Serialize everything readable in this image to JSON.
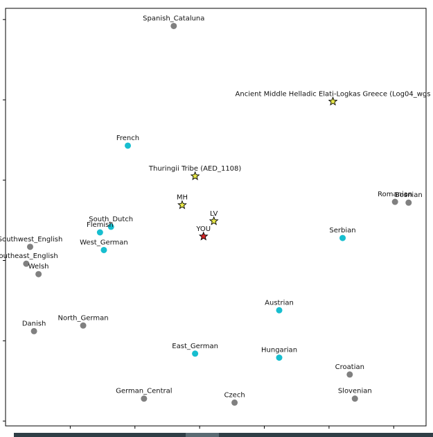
{
  "chart_data": {
    "type": "scatter",
    "title": "",
    "xlabel": "",
    "ylabel": "",
    "grid": false,
    "xlim": [
      0.0,
      6.5
    ],
    "ylim": [
      -0.06,
      5.14
    ],
    "xticks": [
      1,
      2,
      3,
      4,
      5,
      6
    ],
    "yticks": [
      0,
      1,
      2,
      3,
      4,
      5
    ],
    "tick_labels_visible": false,
    "colors": {
      "reference_gray": "#808080",
      "reference_cyan": "#17becf",
      "ancient_star": "#e8e84a",
      "you_star": "#d62728",
      "marker_edge": "#000000"
    },
    "points": [
      {
        "label": "Spanish_Cataluna",
        "x": 2.6,
        "y": 4.92,
        "group": "gray",
        "marker": "circle"
      },
      {
        "label": "Ancient Middle Helladic Elati-Logkas Greece (Log04_wgs",
        "x": 5.06,
        "y": 3.98,
        "group": "ancient",
        "marker": "star"
      },
      {
        "label": "French",
        "x": 1.89,
        "y": 3.43,
        "group": "cyan",
        "marker": "circle"
      },
      {
        "label": "Thuringii Tribe (AED_1108)",
        "x": 2.93,
        "y": 3.05,
        "group": "ancient",
        "marker": "star"
      },
      {
        "label": "Romanian",
        "x": 6.02,
        "y": 2.73,
        "group": "gray",
        "marker": "circle"
      },
      {
        "label": "Bosnian",
        "x": 6.23,
        "y": 2.72,
        "group": "gray",
        "marker": "circle"
      },
      {
        "label": "MH",
        "x": 2.73,
        "y": 2.69,
        "group": "ancient",
        "marker": "star"
      },
      {
        "label": "LV",
        "x": 3.22,
        "y": 2.49,
        "group": "ancient",
        "marker": "star"
      },
      {
        "label": "South_Dutch",
        "x": 1.63,
        "y": 2.42,
        "group": "cyan",
        "marker": "circle"
      },
      {
        "label": "Flemish",
        "x": 1.46,
        "y": 2.35,
        "group": "cyan",
        "marker": "circle"
      },
      {
        "label": "YOU",
        "x": 3.06,
        "y": 2.3,
        "group": "you",
        "marker": "star"
      },
      {
        "label": "Serbian",
        "x": 5.21,
        "y": 2.28,
        "group": "cyan",
        "marker": "circle"
      },
      {
        "label": "Southwest_English",
        "x": 0.38,
        "y": 2.17,
        "group": "gray",
        "marker": "circle"
      },
      {
        "label": "West_German",
        "x": 1.52,
        "y": 2.13,
        "group": "cyan",
        "marker": "circle"
      },
      {
        "label": "Southeast_English",
        "x": 0.32,
        "y": 1.96,
        "group": "gray",
        "marker": "circle"
      },
      {
        "label": "Welsh",
        "x": 0.51,
        "y": 1.83,
        "group": "gray",
        "marker": "circle"
      },
      {
        "label": "Austrian",
        "x": 4.23,
        "y": 1.38,
        "group": "cyan",
        "marker": "circle"
      },
      {
        "label": "North_German",
        "x": 1.2,
        "y": 1.19,
        "group": "gray",
        "marker": "circle"
      },
      {
        "label": "Danish",
        "x": 0.44,
        "y": 1.12,
        "group": "gray",
        "marker": "circle"
      },
      {
        "label": "East_German",
        "x": 2.93,
        "y": 0.84,
        "group": "cyan",
        "marker": "circle"
      },
      {
        "label": "Hungarian",
        "x": 4.23,
        "y": 0.79,
        "group": "cyan",
        "marker": "circle"
      },
      {
        "label": "Croatian",
        "x": 5.32,
        "y": 0.58,
        "group": "gray",
        "marker": "circle"
      },
      {
        "label": "German_Central",
        "x": 2.14,
        "y": 0.28,
        "group": "gray",
        "marker": "circle"
      },
      {
        "label": "Slovenian",
        "x": 5.4,
        "y": 0.28,
        "group": "gray",
        "marker": "circle"
      },
      {
        "label": "Czech",
        "x": 3.54,
        "y": 0.23,
        "group": "gray",
        "marker": "circle"
      }
    ]
  }
}
